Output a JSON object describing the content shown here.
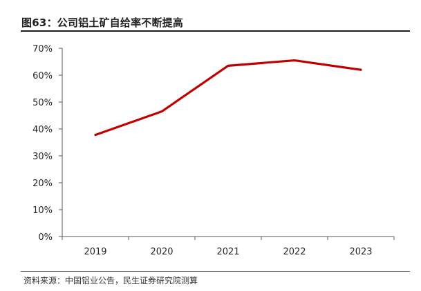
{
  "figure": {
    "title": "图63：公司铝土矿自给率不断提高",
    "source": "资料来源：中国铝业公告，民生证券研究院测算"
  },
  "colors": {
    "series": "#c00000",
    "axis": "#595959",
    "text": "#262626"
  },
  "chart_data": {
    "type": "line",
    "title": "公司铝土矿自给率不断提高",
    "xlabel": "",
    "ylabel": "",
    "categories": [
      "2019",
      "2020",
      "2021",
      "2022",
      "2023"
    ],
    "series": [
      {
        "values": [
          37.8,
          46.5,
          63.5,
          65.5,
          62.0
        ]
      }
    ],
    "ylim": [
      0,
      70
    ],
    "y_ticks": [
      0,
      10,
      20,
      30,
      40,
      50,
      60,
      70
    ],
    "y_tick_labels": [
      "0%",
      "10%",
      "20%",
      "30%",
      "40%",
      "50%",
      "60%",
      "70%"
    ],
    "grid": false,
    "legend": "none"
  }
}
